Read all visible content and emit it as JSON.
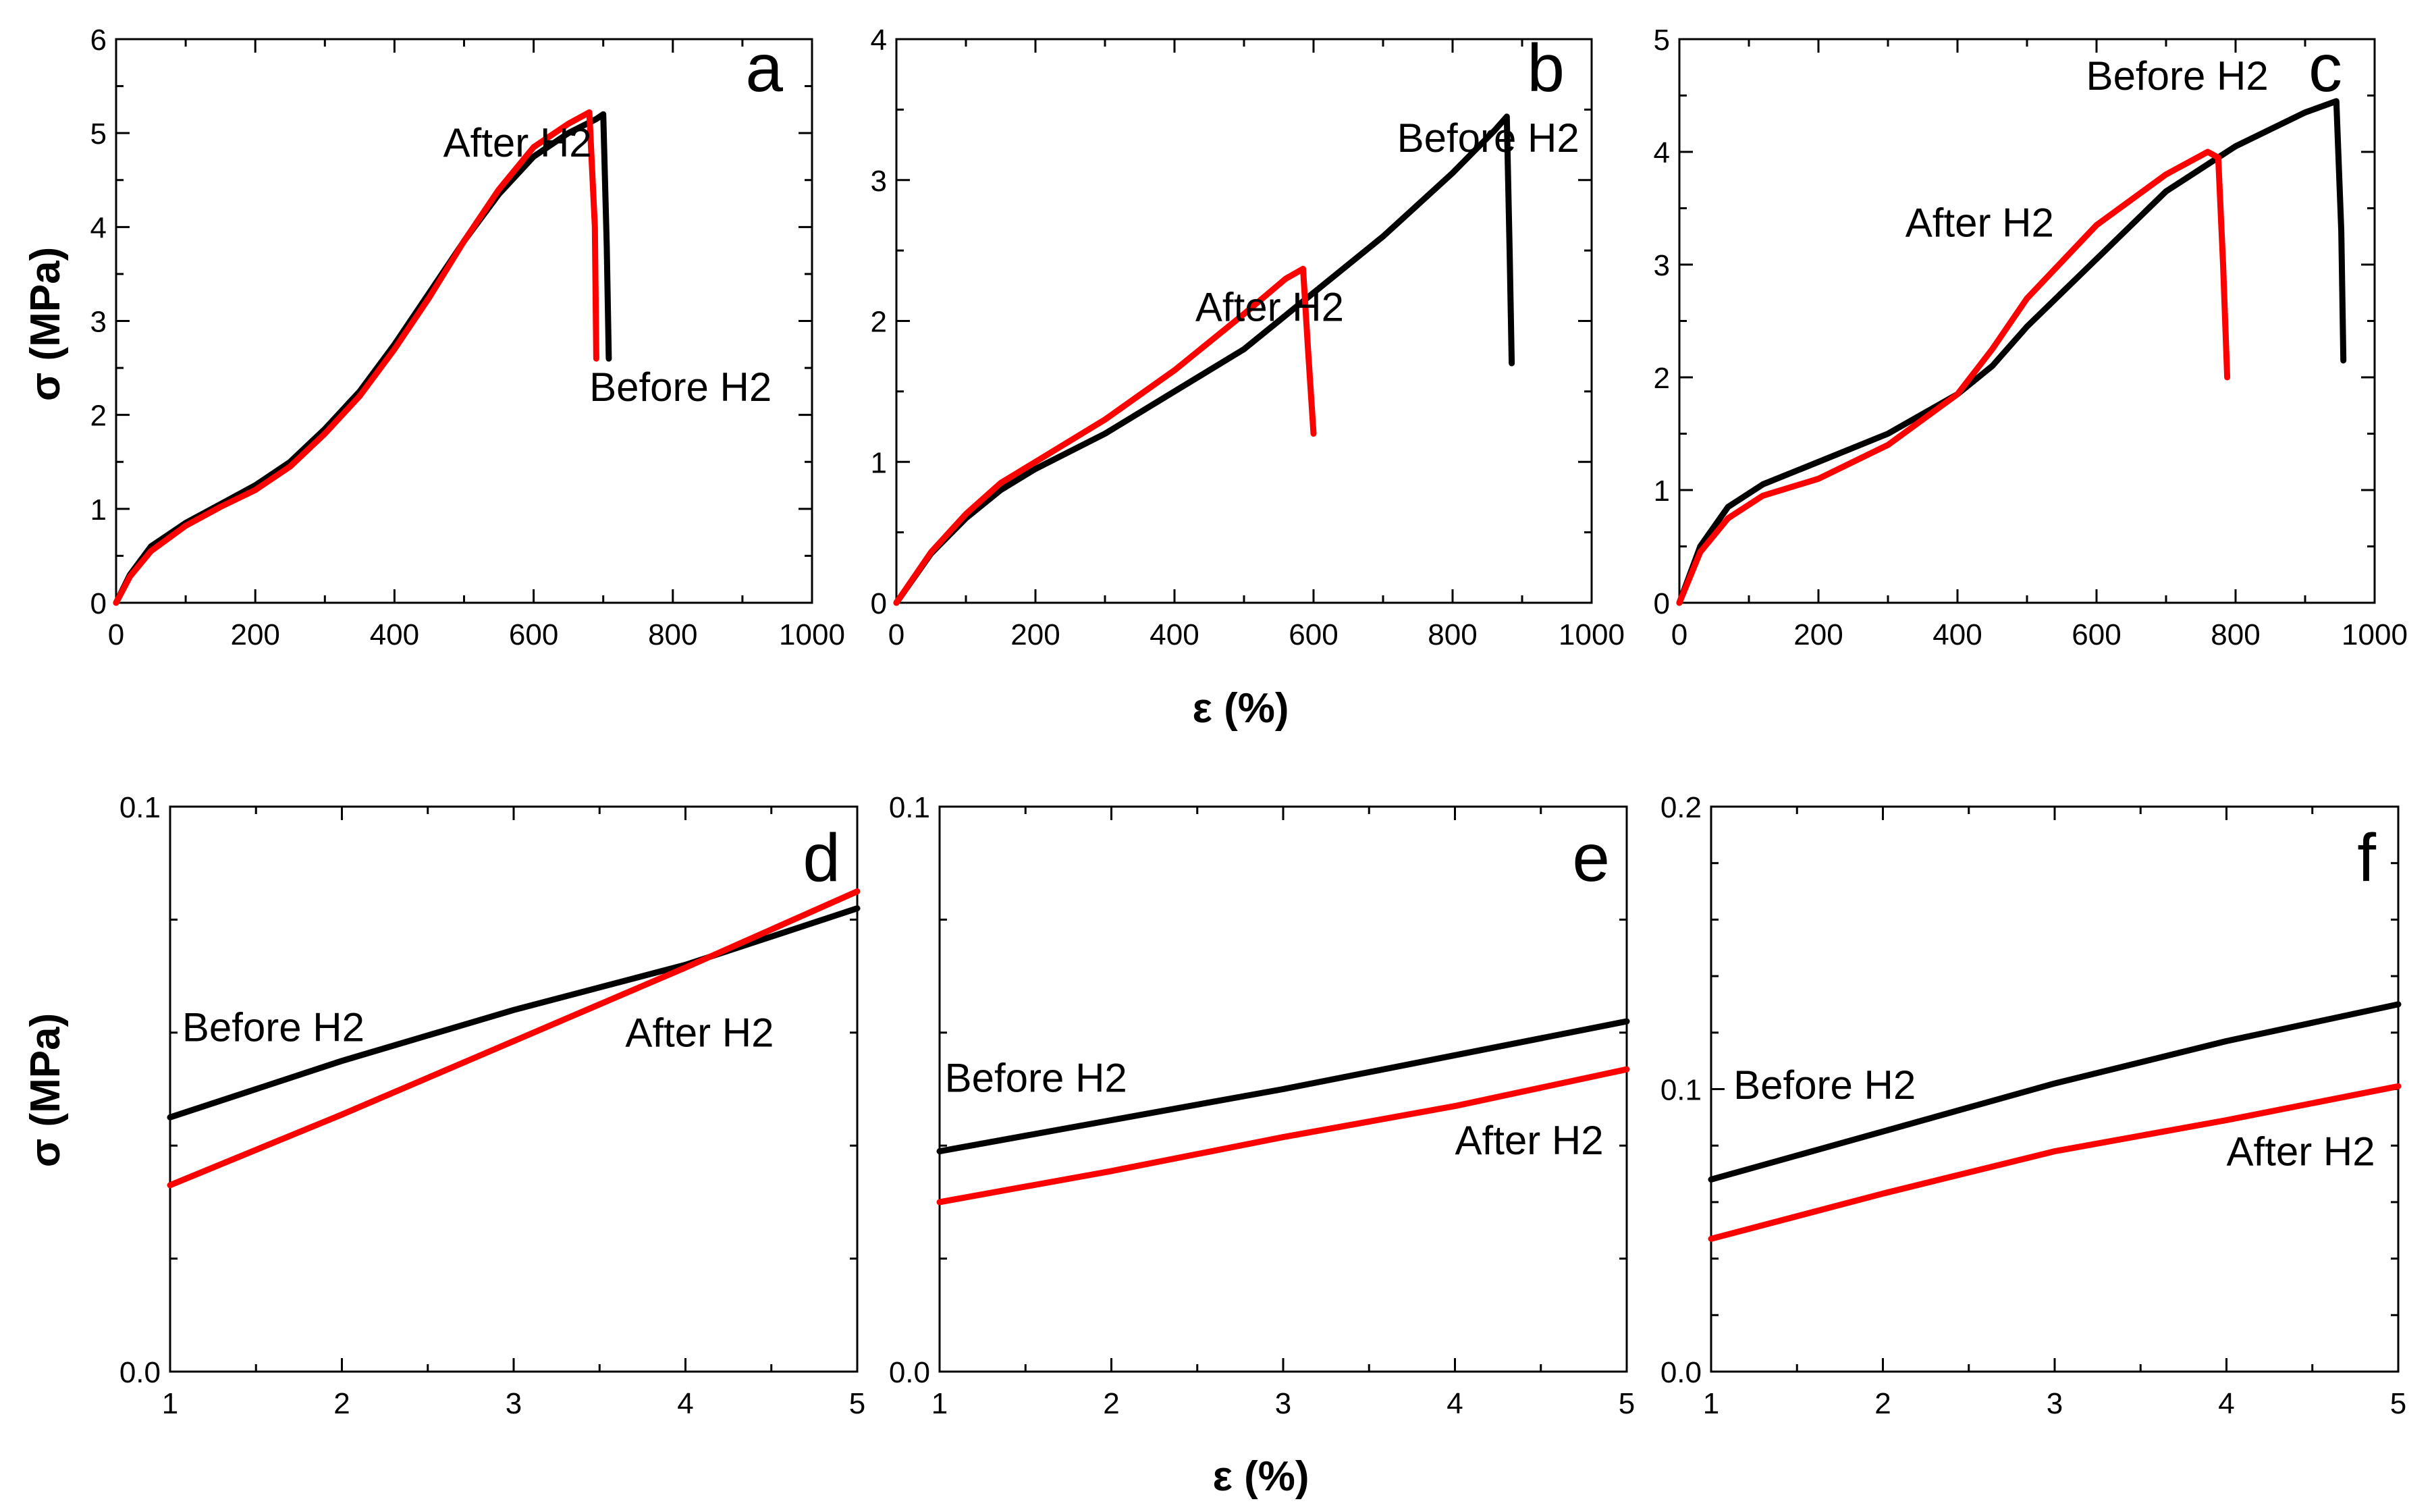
{
  "chart_data": [
    {
      "panel": "a",
      "type": "line",
      "xlim": [
        0,
        1000
      ],
      "ylim": [
        0,
        6
      ],
      "xticks": [
        0,
        200,
        400,
        600,
        800,
        1000
      ],
      "yticks": [
        0,
        1,
        2,
        3,
        4,
        5,
        6
      ],
      "xtick_labels": [
        "0",
        "200",
        "400",
        "600",
        "800",
        "1000"
      ],
      "ytick_labels": [
        "0",
        "1",
        "2",
        "3",
        "4",
        "5",
        "6"
      ],
      "xlabel": "",
      "ylabel": "σ (MPa)",
      "series": [
        {
          "name": "Before H2",
          "color": "#000000",
          "x": [
            0,
            20,
            50,
            100,
            150,
            200,
            250,
            300,
            350,
            400,
            450,
            500,
            550,
            600,
            650,
            690,
            700,
            705,
            708
          ],
          "y": [
            0,
            0.3,
            0.6,
            0.85,
            1.05,
            1.25,
            1.5,
            1.85,
            2.25,
            2.75,
            3.3,
            3.85,
            4.35,
            4.75,
            5.0,
            5.15,
            5.2,
            3.8,
            2.6
          ]
        },
        {
          "name": "After H2",
          "color": "#ff0000",
          "x": [
            0,
            20,
            50,
            100,
            150,
            200,
            250,
            300,
            350,
            400,
            450,
            500,
            550,
            600,
            650,
            680,
            688,
            690
          ],
          "y": [
            0,
            0.28,
            0.55,
            0.82,
            1.02,
            1.2,
            1.45,
            1.8,
            2.2,
            2.7,
            3.25,
            3.85,
            4.4,
            4.85,
            5.1,
            5.22,
            4.0,
            2.6
          ]
        }
      ],
      "annotations": [
        {
          "text": "After H2",
          "x": 470,
          "y": 4.75
        },
        {
          "text": "Before H2",
          "x": 680,
          "y": 2.15
        }
      ]
    },
    {
      "panel": "b",
      "type": "line",
      "xlim": [
        0,
        1000
      ],
      "ylim": [
        0,
        4
      ],
      "xticks": [
        0,
        200,
        400,
        600,
        800,
        1000
      ],
      "yticks": [
        0,
        1,
        2,
        3,
        4
      ],
      "xtick_labels": [
        "0",
        "200",
        "400",
        "600",
        "800",
        "1000"
      ],
      "ytick_labels": [
        "0",
        "1",
        "2",
        "3",
        "4"
      ],
      "xlabel": "ε (%)",
      "ylabel": "",
      "series": [
        {
          "name": "Before H2",
          "color": "#000000",
          "x": [
            0,
            50,
            100,
            150,
            200,
            300,
            400,
            500,
            600,
            700,
            800,
            860,
            878,
            882,
            885
          ],
          "y": [
            0,
            0.35,
            0.6,
            0.8,
            0.95,
            1.2,
            1.5,
            1.8,
            2.2,
            2.6,
            3.05,
            3.35,
            3.45,
            2.5,
            1.7
          ]
        },
        {
          "name": "After H2",
          "color": "#ff0000",
          "x": [
            0,
            50,
            100,
            150,
            200,
            300,
            400,
            500,
            560,
            585,
            592,
            600
          ],
          "y": [
            0,
            0.36,
            0.63,
            0.85,
            1.0,
            1.3,
            1.65,
            2.05,
            2.3,
            2.37,
            1.8,
            1.2
          ]
        }
      ],
      "annotations": [
        {
          "text": "Before H2",
          "x": 720,
          "y": 3.2
        },
        {
          "text": "After H2",
          "x": 430,
          "y": 2.0
        }
      ]
    },
    {
      "panel": "c",
      "type": "line",
      "xlim": [
        0,
        1000
      ],
      "ylim": [
        0,
        5
      ],
      "xticks": [
        0,
        200,
        400,
        600,
        800,
        1000
      ],
      "yticks": [
        0,
        1,
        2,
        3,
        4,
        5
      ],
      "xtick_labels": [
        "0",
        "200",
        "400",
        "600",
        "800",
        "1000"
      ],
      "ytick_labels": [
        "0",
        "1",
        "2",
        "3",
        "4",
        "5"
      ],
      "xlabel": "",
      "ylabel": "",
      "series": [
        {
          "name": "Before H2",
          "color": "#000000",
          "x": [
            0,
            30,
            70,
            120,
            200,
            300,
            400,
            450,
            500,
            600,
            700,
            800,
            900,
            945,
            952,
            955
          ],
          "y": [
            0,
            0.5,
            0.85,
            1.05,
            1.25,
            1.5,
            1.85,
            2.1,
            2.45,
            3.05,
            3.65,
            4.05,
            4.35,
            4.45,
            3.3,
            2.15
          ]
        },
        {
          "name": "After H2",
          "color": "#ff0000",
          "x": [
            0,
            30,
            70,
            120,
            200,
            300,
            400,
            450,
            500,
            600,
            700,
            760,
            775,
            782,
            788
          ],
          "y": [
            0,
            0.45,
            0.75,
            0.95,
            1.1,
            1.4,
            1.85,
            2.25,
            2.7,
            3.35,
            3.8,
            4.0,
            3.95,
            3.0,
            2.0
          ]
        }
      ],
      "annotations": [
        {
          "text": "Before H2",
          "x": 585,
          "y": 4.55
        },
        {
          "text": "After H2",
          "x": 325,
          "y": 3.25
        }
      ]
    },
    {
      "panel": "d",
      "type": "line",
      "xlim": [
        1,
        5
      ],
      "ylim": [
        0,
        0.1
      ],
      "xticks": [
        1,
        2,
        3,
        4,
        5
      ],
      "yticks": [
        0,
        0.1
      ],
      "xtick_labels": [
        "1",
        "2",
        "3",
        "4",
        "5"
      ],
      "ytick_labels": [
        "0.0",
        "0.1"
      ],
      "xlabel": "",
      "ylabel": "σ (MPa)",
      "series": [
        {
          "name": "Before H2",
          "color": "#000000",
          "x": [
            1,
            2,
            3,
            4,
            5
          ],
          "y": [
            0.045,
            0.055,
            0.064,
            0.072,
            0.082
          ]
        },
        {
          "name": "After H2",
          "color": "#ff0000",
          "x": [
            1,
            2,
            3,
            4,
            5
          ],
          "y": [
            0.033,
            0.0455,
            0.0585,
            0.0715,
            0.085
          ]
        }
      ],
      "annotations": [
        {
          "text": "Before H2",
          "x": 1.07,
          "y": 0.0585
        },
        {
          "text": "After H2",
          "x": 3.65,
          "y": 0.0575
        }
      ]
    },
    {
      "panel": "e",
      "type": "line",
      "xlim": [
        1,
        5
      ],
      "ylim": [
        0,
        0.1
      ],
      "xticks": [
        1,
        2,
        3,
        4,
        5
      ],
      "yticks": [
        0,
        0.1
      ],
      "xtick_labels": [
        "1",
        "2",
        "3",
        "4",
        "5"
      ],
      "ytick_labels": [
        "0.0",
        "0.1"
      ],
      "xlabel": "ε (%)",
      "ylabel": "",
      "series": [
        {
          "name": "Before H2",
          "color": "#000000",
          "x": [
            1,
            2,
            3,
            4,
            5
          ],
          "y": [
            0.039,
            0.0445,
            0.05,
            0.056,
            0.062
          ]
        },
        {
          "name": "After H2",
          "color": "#ff0000",
          "x": [
            1,
            2,
            3,
            4,
            5
          ],
          "y": [
            0.03,
            0.0355,
            0.0415,
            0.047,
            0.0535
          ]
        }
      ],
      "annotations": [
        {
          "text": "Before H2",
          "x": 1.03,
          "y": 0.0495
        },
        {
          "text": "After H2",
          "x": 4.0,
          "y": 0.0385
        }
      ]
    },
    {
      "panel": "f",
      "type": "line",
      "xlim": [
        1,
        5
      ],
      "ylim": [
        0,
        0.2
      ],
      "xticks": [
        1,
        2,
        3,
        4,
        5
      ],
      "yticks": [
        0,
        0.1,
        0.2
      ],
      "xtick_labels": [
        "1",
        "2",
        "3",
        "4",
        "5"
      ],
      "ytick_labels": [
        "0.0",
        "0.1",
        "0.2"
      ],
      "xlabel": "",
      "ylabel": "",
      "series": [
        {
          "name": "Before H2",
          "color": "#000000",
          "x": [
            1,
            2,
            3,
            4,
            5
          ],
          "y": [
            0.068,
            0.085,
            0.102,
            0.117,
            0.13
          ]
        },
        {
          "name": "After H2",
          "color": "#ff0000",
          "x": [
            1,
            2,
            3,
            4,
            5
          ],
          "y": [
            0.047,
            0.063,
            0.078,
            0.089,
            0.101
          ]
        }
      ],
      "annotations": [
        {
          "text": "Before H2",
          "x": 1.13,
          "y": 0.0965
        },
        {
          "text": "After H2",
          "x": 4.0,
          "y": 0.073
        }
      ]
    }
  ]
}
